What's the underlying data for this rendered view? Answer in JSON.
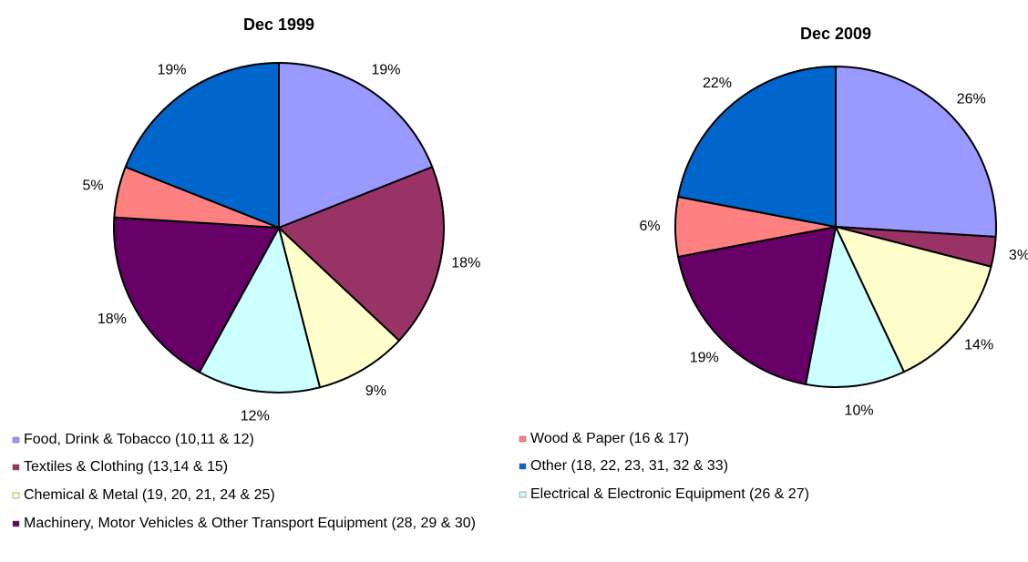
{
  "chart_data": [
    {
      "type": "pie",
      "title": "Dec 1999",
      "values": [
        19,
        18,
        9,
        12,
        18,
        5,
        19
      ],
      "value_labels": [
        "19%",
        "18%",
        "9%",
        "12%",
        "18%",
        "5%",
        "19%"
      ]
    },
    {
      "type": "pie",
      "title": "Dec 2009",
      "values": [
        26,
        3,
        14,
        10,
        19,
        6,
        22
      ],
      "value_labels": [
        "26%",
        "3%",
        "14%",
        "10%",
        "19%",
        "6%",
        "22%"
      ]
    }
  ],
  "legend": {
    "categories": [
      "Food, Drink & Tobacco (10,11 & 12)",
      "Textiles & Clothing (13,14 & 15)",
      "Chemical & Metal (19, 20, 21, 24 & 25)",
      "Electrical & Electronic Equipment (26 & 27)",
      "Machinery, Motor Vehicles & Other Transport Equipment (28, 29 & 30)",
      "Wood & Paper (16 & 17)",
      "Other (18, 22, 23, 31, 32 & 33)"
    ],
    "colors": [
      "#9999ff",
      "#993366",
      "#ffffcc",
      "#ccffff",
      "#660066",
      "#ff8080",
      "#0066cc"
    ]
  }
}
